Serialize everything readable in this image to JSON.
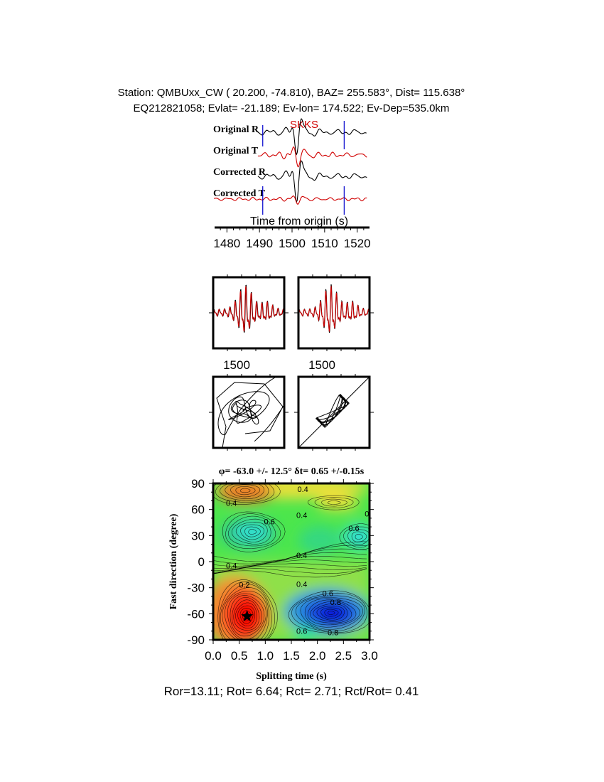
{
  "header": {
    "station_line": "Station: QMBUxx_CW (  20.200,  -74.810), BAZ=  255.583°, Dist=  115.638°",
    "event_line": "EQ212821058; Evlat= -21.189; Ev-lon= 174.522; Ev-Dep=535.0km"
  },
  "chart_data": [
    {
      "type": "line",
      "panel": "waveforms",
      "phase": "SKKS",
      "xlabel": "Time from origin (s)",
      "xlim": [
        1476,
        1524
      ],
      "xticks": [
        1480,
        1490,
        1500,
        1510,
        1520
      ],
      "window_markers": [
        1491,
        1516
      ],
      "phase_time": 1502,
      "series": [
        {
          "name": "Original R",
          "color": "#000000"
        },
        {
          "name": "Original T",
          "color": "#d00000"
        },
        {
          "name": "Corrected R",
          "color": "#000000"
        },
        {
          "name": "Corrected T",
          "color": "#d00000"
        }
      ]
    },
    {
      "type": "line",
      "panel": "particle-motion-waveforms",
      "subplots": [
        {
          "xtick": 1500,
          "series": [
            {
              "color": "#000000"
            },
            {
              "color": "#d00000"
            }
          ]
        },
        {
          "xtick": 1500,
          "series": [
            {
              "color": "#000000"
            },
            {
              "color": "#d00000"
            }
          ]
        }
      ]
    },
    {
      "type": "scatter",
      "panel": "particle-motion",
      "subplots": [
        {
          "shape": "original (elliptical)"
        },
        {
          "shape": "corrected (linear)"
        }
      ]
    },
    {
      "type": "heatmap",
      "panel": "energy-grid",
      "title": "φ= -63.0 +/- 12.5° δt= 0.65 +/-0.15s",
      "xlabel": "Splitting time (s)",
      "ylabel": "Fast direction (degree)",
      "xlim": [
        0,
        3
      ],
      "ylim": [
        -90,
        90
      ],
      "xticks": [
        "0.0",
        "0.5",
        "1.0",
        "1.5",
        "2.0",
        "2.5",
        "3.0"
      ],
      "yticks": [
        "90",
        "60",
        "30",
        "0",
        "-30",
        "-60",
        "-90"
      ],
      "best_fit": {
        "dt": 0.65,
        "phi": -63.0
      },
      "contour_labels": [
        {
          "text": "0.4",
          "dt": 0.35,
          "phi": 67
        },
        {
          "text": "0.6",
          "dt": 1.08,
          "phi": 46
        },
        {
          "text": "0.4",
          "dt": 1.7,
          "phi": 53
        },
        {
          "text": "0.4",
          "dt": 1.7,
          "phi": 7
        },
        {
          "text": "0.4",
          "dt": 0.35,
          "phi": -5
        },
        {
          "text": "0.2",
          "dt": 0.6,
          "phi": -27
        },
        {
          "text": "0.4",
          "dt": 1.7,
          "phi": -26
        },
        {
          "text": "0.6",
          "dt": 2.2,
          "phi": -37
        },
        {
          "text": "0.8",
          "dt": 2.35,
          "phi": -47
        },
        {
          "text": "0.8",
          "dt": 2.3,
          "phi": -82
        },
        {
          "text": "0.6",
          "dt": 1.7,
          "phi": -80
        },
        {
          "text": "0.6",
          "dt": 2.7,
          "phi": 38
        },
        {
          "text": "0.4",
          "dt": 1.72,
          "phi": 83
        },
        {
          "text": "0",
          "dt": 2.95,
          "phi": 55
        }
      ]
    }
  ],
  "footer": {
    "stats": "Ror=13.11; Rot= 6.64; Rct= 2.71; Rct/Rot= 0.41"
  }
}
